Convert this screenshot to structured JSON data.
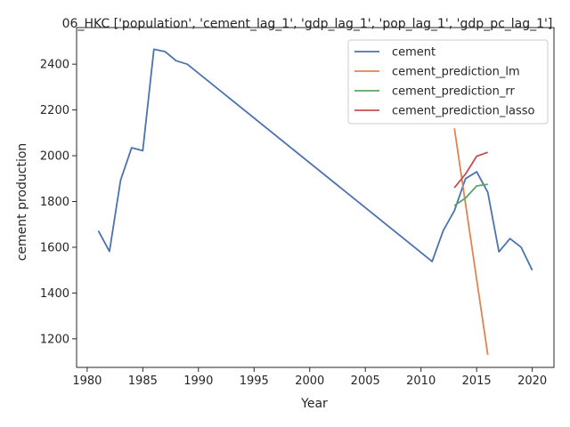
{
  "chart_data": {
    "type": "line",
    "title": "06_HKC ['population', 'cement_lag_1', 'gdp_lag_1', 'pop_lag_1', 'gdp_pc_lag_1']",
    "xlabel": "Year",
    "ylabel": "cement production",
    "xlim": [
      1979.05,
      2021.95
    ],
    "ylim": [
      1075,
      2560
    ],
    "xticks": [
      1980,
      1985,
      1990,
      1995,
      2000,
      2005,
      2010,
      2015,
      2020
    ],
    "yticks": [
      1200,
      1400,
      1600,
      1800,
      2000,
      2200,
      2400
    ],
    "grid": false,
    "legend_position": "top-right",
    "series": [
      {
        "name": "cement",
        "color": "#4c72b0",
        "points": [
          [
            1981,
            1672
          ],
          [
            1982,
            1582
          ],
          [
            1983,
            1893
          ],
          [
            1984,
            2035
          ],
          [
            1985,
            2022
          ],
          [
            1986,
            2465
          ],
          [
            1987,
            2455
          ],
          [
            1988,
            2415
          ],
          [
            1989,
            2400
          ],
          [
            2011,
            1538
          ],
          [
            2012,
            1673
          ],
          [
            2013,
            1760
          ],
          [
            2014,
            1900
          ],
          [
            2015,
            1930
          ],
          [
            2016,
            1840
          ],
          [
            2017,
            1580
          ],
          [
            2018,
            1638
          ],
          [
            2019,
            1600
          ],
          [
            2020,
            1500
          ]
        ]
      },
      {
        "name": "cement_prediction_lm",
        "color": "#dd8452",
        "points": [
          [
            2013,
            2120
          ],
          [
            2016,
            1130
          ]
        ]
      },
      {
        "name": "cement_prediction_rr",
        "color": "#55a868",
        "points": [
          [
            2013,
            1782
          ],
          [
            2014,
            1815
          ],
          [
            2015,
            1868
          ],
          [
            2016,
            1875
          ]
        ]
      },
      {
        "name": "cement_prediction_lasso",
        "color": "#c44e52",
        "points": [
          [
            2013,
            1860
          ],
          [
            2014,
            1920
          ],
          [
            2015,
            1998
          ],
          [
            2016,
            2015
          ]
        ]
      }
    ]
  }
}
